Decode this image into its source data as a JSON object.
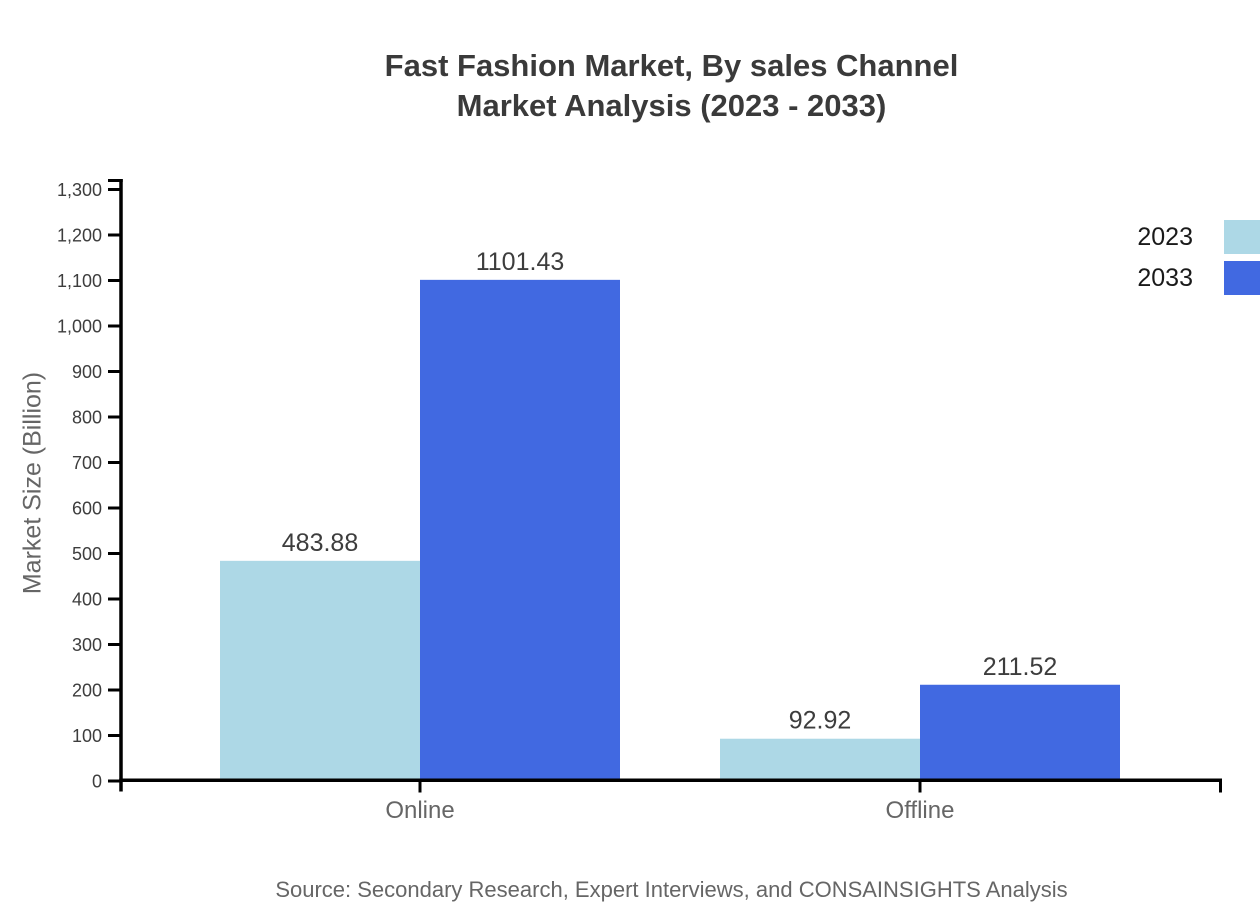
{
  "title": {
    "line1": "Fast Fashion Market, By sales Channel",
    "line2": "Market Analysis (2023 - 2033)"
  },
  "source_note": "Source: Secondary Research, Expert Interviews, and CONSAINSIGHTS Analysis",
  "chart_data": {
    "type": "bar",
    "title": "Fast Fashion Market, By sales Channel Market Analysis (2023 - 2033)",
    "categories": [
      "Online",
      "Offline"
    ],
    "series": [
      {
        "name": "2023",
        "color": "#ADD8E6",
        "values": [
          483.88,
          92.92
        ],
        "value_labels": [
          "483.88",
          "92.92"
        ]
      },
      {
        "name": "2033",
        "color": "#4169E1",
        "values": [
          1101.43,
          211.52
        ],
        "value_labels": [
          "1101.43",
          "211.52"
        ]
      }
    ],
    "xlabel": "",
    "ylabel": "Market Size (Billion)",
    "ylim": [
      0,
      1300
    ],
    "ytick_step": 100,
    "ytick_labels": [
      "0",
      "100",
      "200",
      "300",
      "400",
      "500",
      "600",
      "700",
      "800",
      "900",
      "1,000",
      "1,100",
      "1,200",
      "1,300"
    ],
    "grid": false,
    "legend_position": "top-right",
    "axis_color": "#000000",
    "text_colors": {
      "title": "#3a3a3a",
      "tick_labels": "#3d3d3d",
      "value_labels": "#3d3d3d",
      "category_labels": "#666666",
      "axis_title": "#666666",
      "legend": "#1a1a1a",
      "source": "#666666"
    }
  }
}
